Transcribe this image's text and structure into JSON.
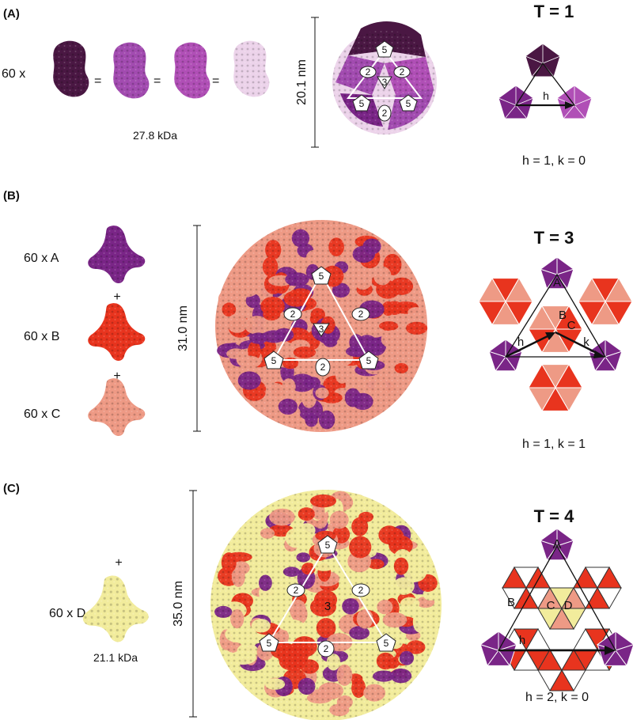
{
  "colors": {
    "dark_plum": "#4a1743",
    "purple": "#7a2587",
    "violet": "#a24bb0",
    "magenta": "#b04fb6",
    "orchid": "#c474c9",
    "pale_pink": "#ecd3ea",
    "red": "#e8341e",
    "salmon": "#ee9a85",
    "yellow": "#f2ec9c",
    "black": "#111111",
    "white": "#ffffff"
  },
  "panels": [
    {
      "letter": "(A)",
      "subunits": [
        "60 x",
        "=",
        "=",
        "="
      ],
      "mass": "27.8 kDa",
      "diameter": "20.1 nm",
      "axes": [
        "5",
        "2",
        "3",
        "2",
        "5",
        "2",
        "5"
      ],
      "lattice_title": "T = 1",
      "vector_labels": [
        "h"
      ],
      "hk": "h = 1, k = 0"
    },
    {
      "letter": "(B)",
      "subunits": [
        "60 x A",
        "+",
        "60 x B",
        "+",
        "60 x C"
      ],
      "diameter": "31.0 nm",
      "axes": [
        "5",
        "2",
        "3",
        "2",
        "5",
        "2",
        "5"
      ],
      "lattice_title": "T = 3",
      "lattice_letters": [
        "A",
        "B",
        "C"
      ],
      "vector_labels": [
        "h",
        "k"
      ],
      "hk": "h = 1, k = 1"
    },
    {
      "letter": "(C)",
      "subunits": [
        "+",
        "60 x D"
      ],
      "mass": "21.1 kDa",
      "diameter": "35.0 nm",
      "axes": [
        "5",
        "2",
        "3",
        "2",
        "5",
        "2",
        "5"
      ],
      "lattice_title": "T = 4",
      "lattice_letters": [
        "A",
        "B",
        "C",
        "D"
      ],
      "vector_labels": [
        "h"
      ],
      "hk": "h = 2, k = 0"
    }
  ]
}
